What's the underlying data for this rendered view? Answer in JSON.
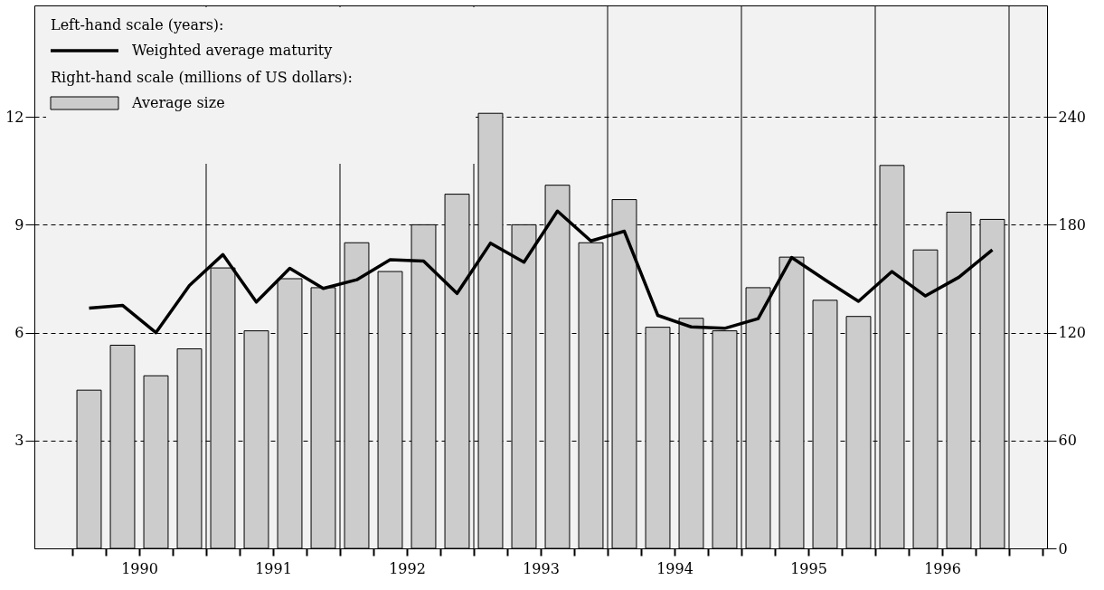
{
  "chart_data": {
    "type": "bar",
    "x": [
      1990.125,
      1990.375,
      1990.625,
      1990.875,
      1991.125,
      1991.375,
      1991.625,
      1991.875,
      1992.125,
      1992.375,
      1992.625,
      1992.875,
      1993.125,
      1993.375,
      1993.625,
      1993.875,
      1994.125,
      1994.375,
      1994.625,
      1994.875,
      1995.125,
      1995.375,
      1995.625,
      1995.875,
      1996.125,
      1996.375,
      1996.625,
      1996.875
    ],
    "xlim": [
      1989.75,
      1997.25
    ],
    "xticks": [
      {
        "value": 1990.0,
        "label": null
      },
      {
        "value": 1990.25,
        "label": null
      },
      {
        "value": 1990.5,
        "label": "1990"
      },
      {
        "value": 1990.75,
        "label": null
      },
      {
        "value": 1991.0,
        "label": null
      },
      {
        "value": 1991.25,
        "label": null
      },
      {
        "value": 1991.5,
        "label": "1991"
      },
      {
        "value": 1991.75,
        "label": null
      },
      {
        "value": 1992.0,
        "label": null
      },
      {
        "value": 1992.25,
        "label": null
      },
      {
        "value": 1992.5,
        "label": "1992"
      },
      {
        "value": 1992.75,
        "label": null
      },
      {
        "value": 1993.0,
        "label": null
      },
      {
        "value": 1993.25,
        "label": null
      },
      {
        "value": 1993.5,
        "label": "1993"
      },
      {
        "value": 1993.75,
        "label": null
      },
      {
        "value": 1994.0,
        "label": null
      },
      {
        "value": 1994.25,
        "label": null
      },
      {
        "value": 1994.5,
        "label": "1994"
      },
      {
        "value": 1994.75,
        "label": null
      },
      {
        "value": 1995.0,
        "label": null
      },
      {
        "value": 1995.25,
        "label": null
      },
      {
        "value": 1995.5,
        "label": "1995"
      },
      {
        "value": 1995.75,
        "label": null
      },
      {
        "value": 1996.0,
        "label": null
      },
      {
        "value": 1996.25,
        "label": null
      },
      {
        "value": 1996.5,
        "label": "1996"
      },
      {
        "value": 1996.75,
        "label": null
      },
      {
        "value": 1997.0,
        "label": null
      },
      {
        "value": 1997.25,
        "label": null
      }
    ],
    "ylim": [
      0,
      15.1
    ],
    "yticks": [
      3,
      6,
      9,
      12
    ],
    "y2lim": [
      0,
      302
    ],
    "y2ticks": [
      0,
      60,
      120,
      180,
      240
    ],
    "grid": "y",
    "legend": "top left",
    "annotations": [
      "Left-hand scale (years):",
      "Right-hand scale (millions of US dollars):"
    ],
    "ref_lines": [
      {
        "axis": "x",
        "value": 1991,
        "label": null
      },
      {
        "axis": "x",
        "value": 1992,
        "label": null
      },
      {
        "axis": "x",
        "value": 1993,
        "label": null
      },
      {
        "axis": "x",
        "value": 1994,
        "label": null
      },
      {
        "axis": "x",
        "value": 1995,
        "label": null
      },
      {
        "axis": "x",
        "value": 1996,
        "label": null
      },
      {
        "axis": "x",
        "value": 1997,
        "label": null
      }
    ],
    "series": [
      {
        "name": "Weighted average maturity",
        "type": "line",
        "axis": "y",
        "color": "#000000",
        "line_style": "solid",
        "values": [
          6.68,
          6.76,
          6.0,
          7.31,
          8.17,
          6.85,
          7.79,
          7.23,
          7.47,
          8.03,
          7.99,
          7.09,
          8.49,
          7.96,
          9.38,
          8.55,
          8.82,
          6.48,
          6.16,
          6.12,
          6.39,
          8.09,
          7.47,
          6.87,
          7.7,
          7.02,
          7.54,
          8.3
        ]
      },
      {
        "name": "Average size",
        "axis": "y2",
        "color": "#cccccc",
        "values": [
          88,
          113,
          96,
          111,
          156,
          121,
          150,
          145,
          170,
          154,
          180,
          197,
          242,
          180,
          202,
          170,
          194,
          123,
          128,
          121,
          145,
          162,
          138,
          129,
          213,
          166,
          187,
          183
        ]
      }
    ]
  }
}
